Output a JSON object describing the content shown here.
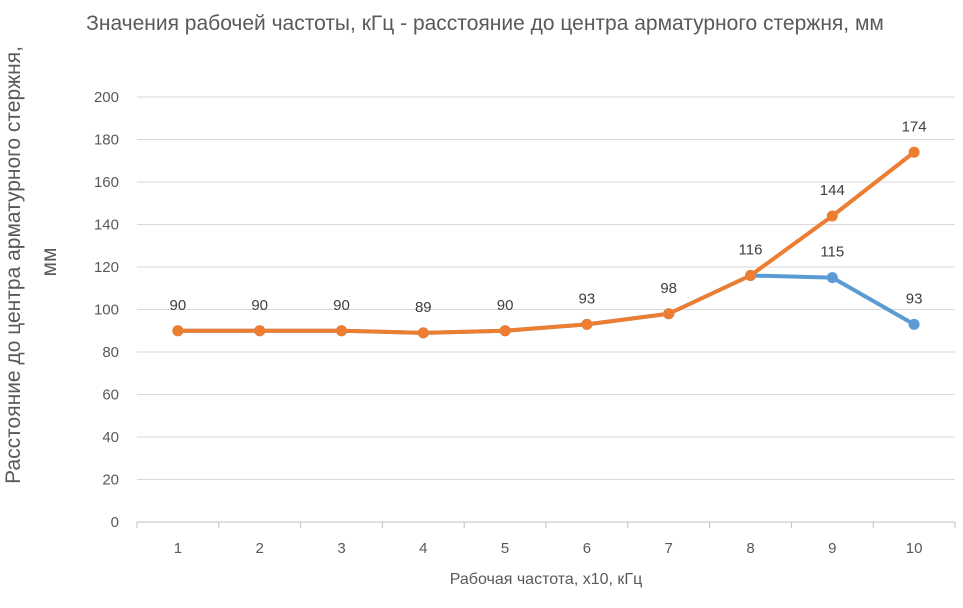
{
  "chart_data": {
    "type": "line",
    "title": "Значения рабочей частоты, кГц - расстояние до центра арматурного стержня, мм",
    "xlabel": "Рабочая частота, х10, кГц",
    "ylabel": "Расстояние до центра арматурного стержня, мм",
    "categories": [
      "1",
      "2",
      "3",
      "4",
      "5",
      "6",
      "7",
      "8",
      "9",
      "10"
    ],
    "ylim": [
      0,
      200
    ],
    "yticks": [
      0,
      20,
      40,
      60,
      80,
      100,
      120,
      140,
      160,
      180,
      200
    ],
    "grid": true,
    "legend": "none",
    "series": [
      {
        "values": [
          90,
          90,
          90,
          89,
          90,
          93,
          98,
          116,
          115,
          93
        ],
        "color": "#5B9BD5"
      },
      {
        "values": [
          90,
          90,
          90,
          89,
          90,
          93,
          98,
          116,
          144,
          174
        ],
        "color": "#ED7D31"
      }
    ],
    "data_labels": [
      {
        "point": 1,
        "value": "90"
      },
      {
        "point": 2,
        "value": "90"
      },
      {
        "point": 3,
        "value": "90"
      },
      {
        "point": 4,
        "value": "89"
      },
      {
        "point": 5,
        "value": "90"
      },
      {
        "point": 6,
        "value": "93"
      },
      {
        "point": 7,
        "value": "98"
      },
      {
        "point": 8,
        "value": "116"
      },
      {
        "point": 9,
        "value": "115"
      },
      {
        "point": 9,
        "value": "144"
      },
      {
        "point": 10,
        "value": "93"
      },
      {
        "point": 10,
        "value": "174"
      }
    ]
  }
}
